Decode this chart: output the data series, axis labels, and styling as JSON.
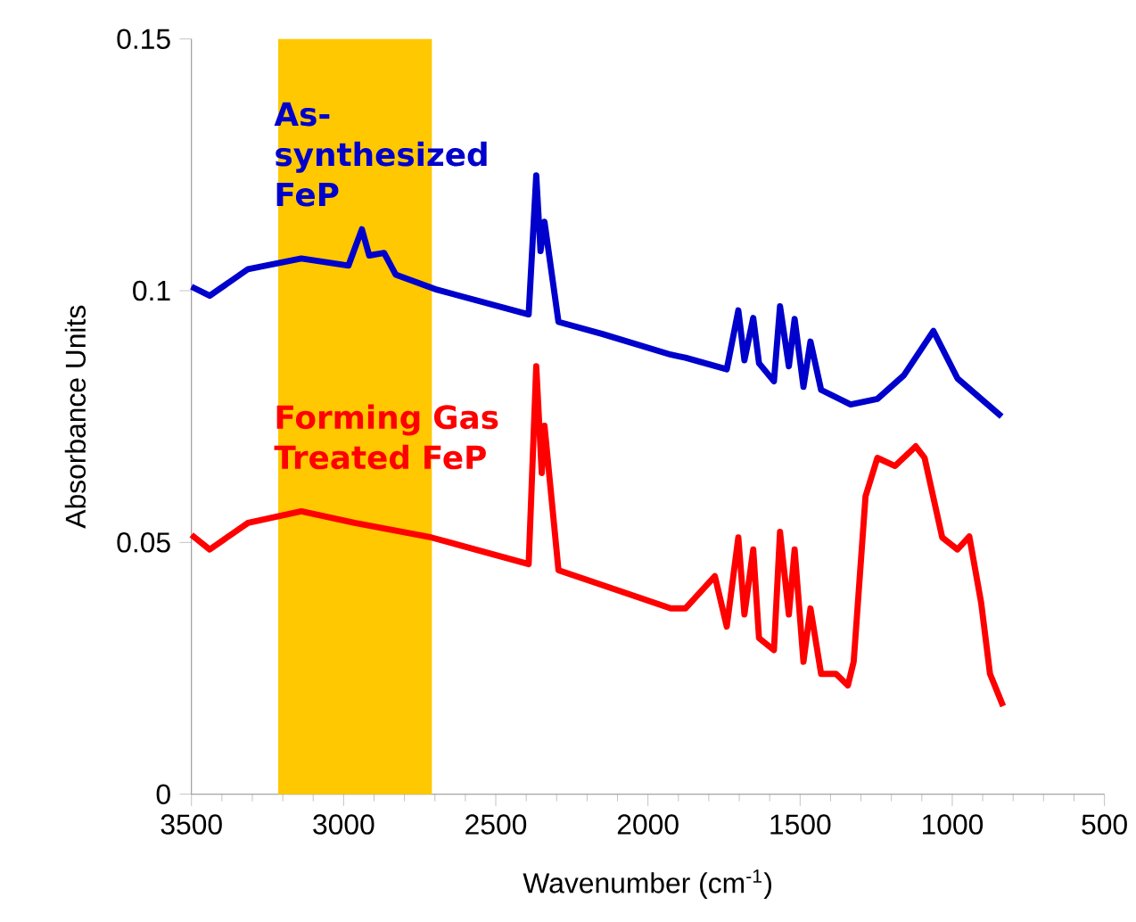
{
  "chart_data": {
    "type": "line",
    "xlabel": "Wavenumber (cm$^{-1}$)",
    "ylabel": "Absorbance Units",
    "xlim": [
      3500,
      500
    ],
    "xticks": [
      3500,
      3000,
      2500,
      2000,
      1500,
      1000,
      500
    ],
    "ylim": [
      0,
      0.15
    ],
    "yticks": [
      0,
      0.05,
      0.1,
      0.15
    ],
    "grid": false,
    "marker": "none",
    "line_style": "solid",
    "bands": [
      {
        "axis": "x",
        "from": 3215,
        "to": 2710,
        "color": "#ffc800"
      }
    ],
    "series": [
      {
        "name": "As-synthesized FeP",
        "color": "#0000cc",
        "x": [
          3500,
          3440,
          3314,
          3139,
          2984,
          2940,
          2916,
          2867,
          2829,
          2693,
          2392,
          2367,
          2353,
          2340,
          2294,
          2149,
          1925,
          1877,
          1741,
          1703,
          1683,
          1654,
          1635,
          1586,
          1566,
          1537,
          1518,
          1489,
          1466,
          1431,
          1334,
          1246,
          1159,
          1062,
          983,
          838
        ],
        "values": [
          0.1008,
          0.099,
          0.1043,
          0.1064,
          0.105,
          0.1122,
          0.107,
          0.1075,
          0.1032,
          0.1002,
          0.0953,
          0.1229,
          0.1079,
          0.1137,
          0.0938,
          0.0914,
          0.0873,
          0.0867,
          0.0844,
          0.0961,
          0.0862,
          0.0946,
          0.0856,
          0.082,
          0.0969,
          0.085,
          0.0944,
          0.0809,
          0.0899,
          0.0803,
          0.0774,
          0.0785,
          0.0832,
          0.092,
          0.0826,
          0.075
        ]
      },
      {
        "name": "Forming Gas Treated FeP",
        "color": "#ff0000",
        "x": [
          3500,
          3440,
          3314,
          3139,
          2964,
          2712,
          2392,
          2367,
          2349,
          2340,
          2294,
          2149,
          1925,
          1877,
          1780,
          1741,
          1703,
          1683,
          1654,
          1635,
          1586,
          1566,
          1537,
          1518,
          1489,
          1466,
          1431,
          1382,
          1343,
          1324,
          1285,
          1246,
          1188,
          1120,
          1091,
          1033,
          983,
          944,
          905,
          876,
          833
        ],
        "values": [
          0.0515,
          0.0486,
          0.0539,
          0.0562,
          0.0539,
          0.051,
          0.0457,
          0.085,
          0.0638,
          0.0732,
          0.0445,
          0.0415,
          0.0369,
          0.0369,
          0.0433,
          0.0333,
          0.051,
          0.0357,
          0.0486,
          0.031,
          0.0286,
          0.0521,
          0.0357,
          0.0486,
          0.0263,
          0.0369,
          0.0239,
          0.0239,
          0.0216,
          0.0263,
          0.0592,
          0.0668,
          0.0652,
          0.0691,
          0.0668,
          0.051,
          0.0486,
          0.0512,
          0.038,
          0.0239,
          0.0175
        ]
      }
    ]
  }
}
